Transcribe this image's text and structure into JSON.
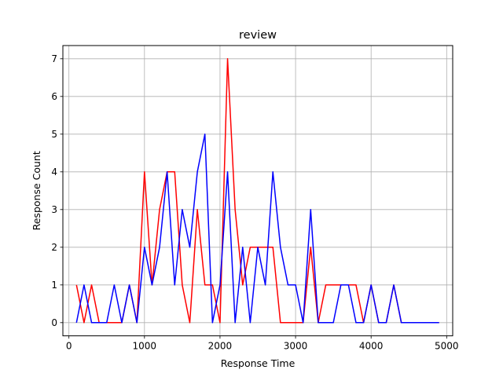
{
  "chart_data": {
    "type": "line",
    "title": "review",
    "xlabel": "Response Time",
    "ylabel": "Response Count",
    "xlim": [
      -80,
      5080
    ],
    "ylim": [
      -0.35,
      7.35
    ],
    "x_ticks": [
      0,
      1000,
      2000,
      3000,
      4000,
      5000
    ],
    "y_ticks": [
      0,
      1,
      2,
      3,
      4,
      5,
      6,
      7
    ],
    "grid": true,
    "legend": "none",
    "x": [
      100,
      200,
      300,
      400,
      500,
      600,
      700,
      800,
      900,
      1000,
      1100,
      1200,
      1300,
      1400,
      1500,
      1600,
      1700,
      1800,
      1900,
      2000,
      2100,
      2200,
      2300,
      2400,
      2500,
      2600,
      2700,
      2800,
      2900,
      3000,
      3100,
      3200,
      3300,
      3400,
      3500,
      3600,
      3700,
      3800,
      3900,
      4000,
      4100,
      4200,
      4300,
      4400,
      4500,
      4600,
      4700,
      4800,
      4900
    ],
    "series": [
      {
        "color": "#ff0000",
        "values": [
          1,
          0,
          1,
          0,
          0,
          0,
          0,
          1,
          0,
          4,
          1,
          3,
          4,
          4,
          1,
          0,
          3,
          1,
          1,
          0,
          7,
          3,
          1,
          2,
          2,
          2,
          2,
          0,
          0,
          0,
          0,
          2,
          0,
          1,
          1,
          1,
          1,
          1,
          0,
          1,
          0,
          0,
          1,
          0,
          0,
          0,
          0,
          0,
          0
        ]
      },
      {
        "color": "#0000ff",
        "values": [
          0,
          1,
          0,
          0,
          0,
          1,
          0,
          1,
          0,
          2,
          1,
          2,
          4,
          1,
          3,
          2,
          4,
          5,
          0,
          1,
          4,
          0,
          2,
          0,
          2,
          1,
          4,
          2,
          1,
          1,
          0,
          3,
          0,
          0,
          0,
          1,
          1,
          0,
          0,
          1,
          0,
          0,
          1,
          0,
          0,
          0,
          0,
          0,
          0
        ]
      }
    ]
  }
}
